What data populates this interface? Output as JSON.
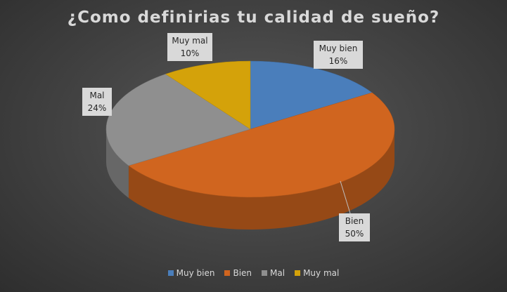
{
  "chart_data": {
    "type": "pie",
    "title": "¿Como definirias tu calidad de sueño?",
    "categories": [
      "Muy bien",
      "Bien",
      "Mal",
      "Muy mal"
    ],
    "values": [
      16,
      50,
      24,
      10
    ],
    "value_labels": [
      "16%",
      "50%",
      "24%",
      "10%"
    ],
    "colors": [
      "#4a7ebb",
      "#d0651f",
      "#8f8f8f",
      "#d4a20a"
    ],
    "legend_position": "bottom",
    "style": "3d"
  }
}
